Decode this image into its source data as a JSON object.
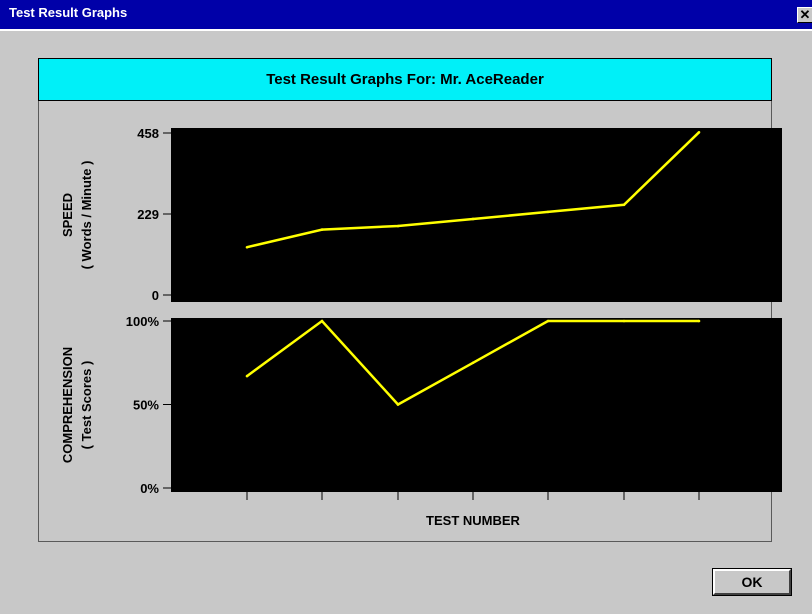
{
  "window": {
    "title": "Test Result Graphs",
    "close_glyph": "✕",
    "ok_label": "OK"
  },
  "heading": "Test Result Graphs For: Mr. AceReader",
  "colors": {
    "window_bg": "#c8c8c8",
    "titlebar": "#0000a8",
    "heading_bg": "#00f0f8",
    "plot_bg": "#000000",
    "line": "#ffff00"
  },
  "chart_data": [
    {
      "type": "line",
      "ylabel": "SPEED",
      "ylabel_sub": "( Words / Minute )",
      "ylim": [
        0,
        458
      ],
      "yticks": [
        "0",
        "229",
        "458"
      ],
      "x": [
        1,
        2,
        3,
        4,
        5,
        6,
        7
      ],
      "values": [
        135,
        185,
        195,
        215,
        235,
        255,
        460
      ]
    },
    {
      "type": "line",
      "ylabel": "COMPREHENSION",
      "ylabel_sub": "( Test Scores )",
      "ylim": [
        0,
        100
      ],
      "yticks": [
        "0%",
        "50%",
        "100%"
      ],
      "x": [
        1,
        2,
        3,
        4,
        5,
        6,
        7
      ],
      "values": [
        67,
        100,
        50,
        75,
        100,
        100,
        100
      ]
    }
  ],
  "xlabel": "TEST NUMBER"
}
